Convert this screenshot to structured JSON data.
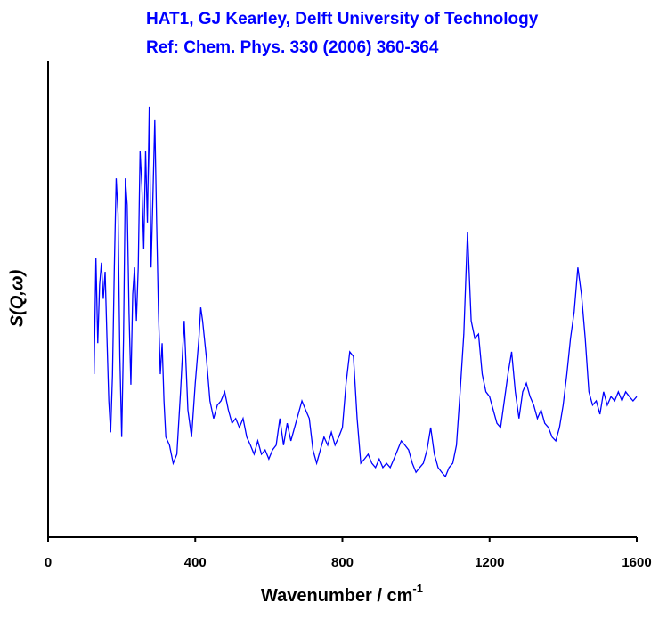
{
  "chart_data": {
    "type": "line",
    "title": "HAT1, GJ Kearley, Delft University of Technology",
    "subtitle": "Ref: Chem. Phys. 330 (2006) 360-364",
    "xlabel": {
      "text": "Wavenumber / cm",
      "superscript": "-1"
    },
    "ylabel": "S(Q,ω)",
    "xlim": [
      0,
      1600
    ],
    "xticks": [
      0,
      400,
      800,
      1200,
      1600
    ],
    "ylim": [
      0,
      100
    ],
    "grid": false,
    "series": [
      {
        "color": "#0000ff",
        "x": [
          125,
          130,
          135,
          140,
          145,
          150,
          155,
          160,
          165,
          170,
          175,
          180,
          185,
          190,
          195,
          200,
          205,
          210,
          215,
          220,
          225,
          230,
          235,
          240,
          245,
          250,
          255,
          260,
          265,
          270,
          275,
          280,
          285,
          290,
          295,
          300,
          305,
          310,
          315,
          320,
          330,
          340,
          350,
          360,
          370,
          380,
          390,
          400,
          410,
          415,
          420,
          430,
          440,
          450,
          460,
          470,
          480,
          490,
          500,
          510,
          520,
          530,
          540,
          550,
          560,
          570,
          580,
          590,
          600,
          610,
          620,
          630,
          640,
          650,
          660,
          670,
          680,
          690,
          700,
          710,
          720,
          730,
          740,
          750,
          760,
          770,
          780,
          790,
          800,
          810,
          820,
          830,
          840,
          850,
          860,
          870,
          880,
          890,
          900,
          910,
          920,
          930,
          940,
          950,
          960,
          970,
          980,
          990,
          1000,
          1010,
          1020,
          1030,
          1040,
          1050,
          1060,
          1070,
          1080,
          1090,
          1100,
          1110,
          1120,
          1130,
          1140,
          1150,
          1160,
          1170,
          1180,
          1190,
          1200,
          1210,
          1220,
          1230,
          1240,
          1250,
          1260,
          1270,
          1280,
          1290,
          1300,
          1310,
          1320,
          1330,
          1340,
          1350,
          1360,
          1370,
          1380,
          1390,
          1400,
          1410,
          1420,
          1430,
          1440,
          1450,
          1460,
          1470,
          1480,
          1490,
          1500,
          1510,
          1520,
          1530,
          1540,
          1550,
          1560,
          1570,
          1580,
          1590,
          1600
        ],
        "values": [
          34.2,
          58.5,
          40.7,
          52.9,
          57.6,
          50,
          55.7,
          41.7,
          28.6,
          22,
          34,
          56.6,
          75.3,
          67.9,
          38,
          21,
          41.7,
          75.3,
          69.7,
          47,
          32,
          51,
          56.6,
          45.4,
          56.6,
          81,
          73.5,
          60.4,
          81,
          66,
          90.3,
          56.6,
          71.6,
          87.5,
          66,
          47.3,
          34.2,
          40.7,
          28.6,
          21,
          19.3,
          15.5,
          17.4,
          30.5,
          45.4,
          26.7,
          21,
          32.3,
          41.7,
          48.2,
          45.4,
          37.9,
          28.6,
          24.9,
          27.7,
          28.6,
          30.5,
          26.7,
          23.9,
          24.9,
          23,
          24.9,
          21,
          19.3,
          17.4,
          20.2,
          17.4,
          18.3,
          16.4,
          18.3,
          19.3,
          24.9,
          19.3,
          23.9,
          20.2,
          23,
          25.8,
          28.6,
          26.7,
          24.9,
          18.3,
          15.5,
          18.3,
          21,
          19.3,
          22,
          19.3,
          21,
          23,
          32.3,
          38.9,
          37.9,
          24.9,
          15.5,
          16.4,
          17.4,
          15.5,
          14.6,
          16.4,
          14.6,
          15.5,
          14.6,
          16.4,
          18.3,
          20.2,
          19.3,
          18.3,
          15.5,
          13.6,
          14.6,
          15.5,
          18.3,
          23,
          17.4,
          14.6,
          13.6,
          12.7,
          14.6,
          15.5,
          19.3,
          30.5,
          42.6,
          64.1,
          45.4,
          41.7,
          42.6,
          34.2,
          30.5,
          29.5,
          26.7,
          23.9,
          23,
          28.6,
          34.2,
          38.9,
          30.5,
          24.9,
          30.5,
          32.3,
          29.5,
          27.7,
          24.9,
          26.7,
          23.9,
          23,
          21,
          20.2,
          23,
          27.7,
          34.2,
          41.7,
          47.3,
          56.6,
          50.8,
          41.7,
          30.5,
          27.7,
          28.6,
          25.8,
          30.5,
          27.7,
          29.5,
          28.6,
          30.5,
          28.6,
          30.5,
          29.5,
          28.6,
          29.5
        ]
      }
    ]
  }
}
